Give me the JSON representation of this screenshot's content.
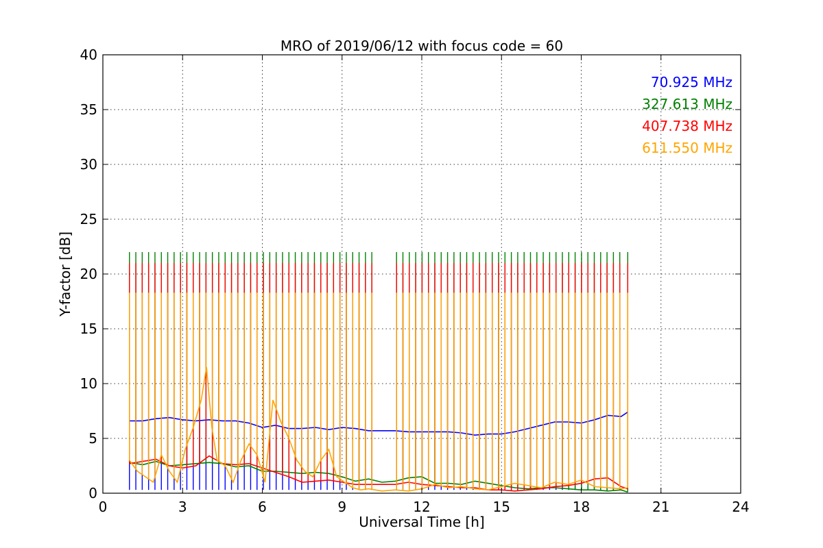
{
  "chart_data": {
    "type": "line",
    "title": "MRO of 2019/06/12 with focus code = 60",
    "xlabel": "Universal Time [h]",
    "ylabel": "Y-factor [dB]",
    "xlim": [
      0,
      24
    ],
    "ylim": [
      0,
      40
    ],
    "xticks": [
      "0",
      "3",
      "6",
      "9",
      "12",
      "15",
      "18",
      "21",
      "24"
    ],
    "yticks": [
      "0",
      "5",
      "10",
      "15",
      "20",
      "25",
      "30",
      "35",
      "40"
    ],
    "grid": true,
    "legend_position": "top-right",
    "calibration_spike_hours": [
      1.0,
      1.24,
      1.48,
      1.72,
      1.96,
      2.2,
      2.44,
      2.68,
      2.92,
      3.16,
      3.4,
      3.64,
      3.88,
      4.12,
      4.36,
      4.6,
      4.84,
      5.08,
      5.32,
      5.56,
      5.8,
      6.04,
      6.28,
      6.52,
      6.76,
      7.0,
      7.24,
      7.48,
      7.72,
      7.96,
      8.2,
      8.44,
      8.68,
      8.92,
      9.16,
      9.4,
      9.64,
      9.88,
      10.12,
      11.05,
      11.29,
      11.53,
      11.77,
      12.01,
      12.25,
      12.49,
      12.73,
      12.97,
      13.21,
      13.45,
      13.69,
      13.93,
      14.17,
      14.41,
      14.65,
      14.89,
      15.13,
      15.37,
      15.61,
      15.85,
      16.09,
      16.33,
      16.57,
      16.81,
      17.05,
      17.29,
      17.53,
      17.77,
      18.01,
      18.25,
      18.49,
      18.73,
      18.97,
      19.21,
      19.45,
      19.75
    ],
    "series": [
      {
        "name": "70.925 MHz",
        "color": "#0000ff",
        "spike_top": 0.3,
        "x": [
          1.0,
          1.5,
          2.0,
          2.5,
          3.0,
          3.5,
          4.0,
          4.5,
          5.0,
          5.5,
          6.0,
          6.5,
          7.0,
          7.5,
          8.0,
          8.5,
          9.0,
          9.5,
          10.0,
          10.5,
          11.0,
          11.5,
          12.0,
          12.5,
          13.0,
          13.5,
          14.0,
          14.5,
          15.0,
          15.5,
          16.0,
          16.5,
          17.0,
          17.5,
          18.0,
          18.5,
          19.0,
          19.5,
          19.75
        ],
        "y": [
          6.6,
          6.6,
          6.8,
          6.9,
          6.7,
          6.6,
          6.7,
          6.6,
          6.6,
          6.4,
          6.0,
          6.2,
          5.9,
          5.9,
          6.0,
          5.8,
          6.0,
          5.9,
          5.7,
          5.7,
          5.7,
          5.6,
          5.6,
          5.6,
          5.6,
          5.5,
          5.3,
          5.4,
          5.4,
          5.6,
          5.9,
          6.2,
          6.5,
          6.5,
          6.4,
          6.7,
          7.1,
          7.0,
          7.4
        ]
      },
      {
        "name": "327.613 MHz",
        "color": "#008000",
        "spike_top": 22.0,
        "x": [
          1.0,
          1.5,
          2.0,
          2.5,
          3.0,
          3.5,
          4.0,
          4.5,
          5.0,
          5.5,
          6.0,
          6.5,
          7.0,
          7.5,
          8.0,
          8.5,
          9.0,
          9.5,
          10.0,
          10.5,
          11.0,
          11.5,
          12.0,
          12.5,
          13.0,
          13.5,
          14.0,
          14.5,
          15.0,
          15.5,
          16.0,
          16.5,
          17.0,
          17.5,
          18.0,
          18.5,
          19.0,
          19.5,
          19.75
        ],
        "y": [
          2.8,
          2.6,
          2.9,
          2.5,
          2.6,
          2.7,
          2.8,
          2.7,
          2.4,
          2.5,
          2.0,
          2.0,
          1.9,
          1.8,
          1.9,
          1.8,
          1.5,
          1.1,
          1.3,
          1.0,
          1.1,
          1.4,
          1.5,
          0.9,
          0.9,
          0.8,
          1.1,
          0.9,
          0.7,
          0.5,
          0.4,
          0.5,
          0.5,
          0.4,
          0.3,
          0.3,
          0.2,
          0.3,
          0.1
        ]
      },
      {
        "name": "407.738 MHz",
        "color": "#ff0000",
        "spike_top": 21.0,
        "x": [
          1.0,
          1.5,
          2.0,
          2.5,
          3.0,
          3.5,
          4.0,
          4.5,
          5.0,
          5.5,
          6.0,
          6.5,
          7.0,
          7.5,
          8.0,
          8.5,
          9.0,
          9.5,
          10.0,
          10.5,
          11.0,
          11.5,
          12.0,
          12.5,
          13.0,
          13.5,
          14.0,
          14.5,
          15.0,
          15.5,
          16.0,
          16.5,
          17.0,
          17.5,
          18.0,
          18.5,
          19.0,
          19.5,
          19.75
        ],
        "y": [
          2.7,
          2.9,
          3.1,
          2.5,
          2.3,
          2.5,
          3.4,
          2.7,
          2.6,
          2.7,
          2.3,
          1.9,
          1.5,
          1.0,
          1.1,
          1.2,
          1.0,
          0.8,
          0.8,
          0.8,
          0.8,
          1.0,
          0.8,
          0.7,
          0.6,
          0.5,
          0.5,
          0.3,
          0.3,
          0.2,
          0.3,
          0.4,
          0.6,
          0.7,
          0.9,
          1.3,
          1.4,
          0.6,
          0.4
        ]
      },
      {
        "name": "611.550 MHz",
        "color": "#ffa500",
        "spike_top": 18.3,
        "x": [
          1.0,
          1.3,
          1.6,
          1.9,
          2.2,
          2.5,
          2.8,
          3.1,
          3.4,
          3.7,
          3.9,
          4.1,
          4.3,
          4.6,
          4.9,
          5.2,
          5.5,
          5.8,
          6.1,
          6.4,
          6.7,
          7.0,
          7.3,
          7.6,
          7.9,
          8.2,
          8.5,
          8.8,
          9.1,
          9.4,
          9.7,
          10.0,
          10.5,
          11.0,
          11.5,
          12.0,
          12.5,
          13.0,
          13.5,
          14.0,
          14.5,
          15.0,
          15.5,
          16.0,
          16.5,
          17.0,
          17.5,
          18.0,
          18.5,
          19.0,
          19.5,
          19.75
        ],
        "y": [
          3.0,
          2.0,
          1.5,
          1.0,
          3.5,
          2.0,
          1.0,
          4.0,
          6.0,
          8.5,
          11.5,
          6.0,
          3.0,
          2.5,
          1.0,
          3.0,
          4.5,
          3.5,
          1.0,
          8.5,
          6.5,
          5.0,
          3.0,
          2.0,
          1.5,
          3.0,
          4.0,
          1.5,
          1.0,
          0.5,
          0.3,
          0.4,
          0.2,
          0.3,
          0.2,
          0.4,
          0.8,
          0.5,
          0.6,
          0.4,
          0.3,
          0.6,
          0.9,
          0.7,
          0.5,
          1.0,
          0.8,
          1.2,
          0.6,
          0.5,
          0.4,
          0.5
        ]
      }
    ]
  }
}
